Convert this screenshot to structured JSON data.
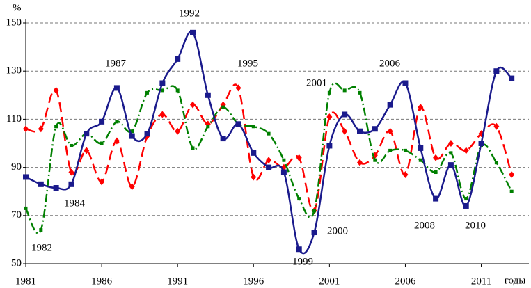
{
  "chart_data": {
    "type": "line",
    "y_label": "%",
    "x_label": "годы",
    "x": [
      1981,
      1982,
      1983,
      1984,
      1985,
      1986,
      1987,
      1988,
      1989,
      1990,
      1991,
      1992,
      1993,
      1994,
      1995,
      1996,
      1997,
      1998,
      1999,
      2000,
      2001,
      2002,
      2003,
      2004,
      2005,
      2006,
      2007,
      2008,
      2009,
      2010,
      2011,
      2012,
      2013
    ],
    "series": [
      {
        "color": "#ff0000",
        "dash": "14,7",
        "marker": "diamond",
        "values": [
          106,
          106,
          122,
          88,
          97,
          84,
          101,
          82,
          103,
          112,
          105,
          116,
          108,
          116,
          123,
          86,
          93,
          90,
          94,
          72,
          111,
          105,
          92,
          95,
          105,
          87,
          115,
          94,
          100,
          97,
          104,
          107,
          87
        ]
      },
      {
        "color": "#008000",
        "dash": "12,4,2,4",
        "marker": "square-small",
        "values": [
          73,
          64,
          107,
          99,
          104,
          100,
          109,
          105,
          121,
          122,
          122,
          98,
          107,
          115,
          108,
          107,
          104,
          93,
          77,
          72,
          121,
          122,
          121,
          93,
          97,
          97,
          93,
          88,
          96,
          77,
          99,
          92,
          80
        ]
      },
      {
        "color": "#1a1a8c",
        "dash": "",
        "marker": "square",
        "values": [
          86,
          83,
          81.5,
          83,
          104,
          109,
          123,
          103,
          104,
          125,
          135,
          146,
          120,
          102,
          108,
          96,
          90,
          88,
          56,
          63,
          99,
          112,
          105,
          106,
          116,
          125,
          98,
          77,
          91,
          74,
          100,
          130,
          127
        ]
      }
    ],
    "annotations": [
      "1992",
      "1987",
      "1995",
      "2006",
      "2001",
      "1984",
      "1982",
      "2000",
      "1999",
      "2008",
      "2010"
    ],
    "xlim": [
      1981,
      2014
    ],
    "xticks": [
      1981,
      1986,
      1991,
      1996,
      2001,
      2006,
      2011
    ],
    "ylim": [
      50,
      150
    ],
    "yticks": [
      50,
      70,
      90,
      110,
      130,
      150
    ],
    "grid": true
  }
}
